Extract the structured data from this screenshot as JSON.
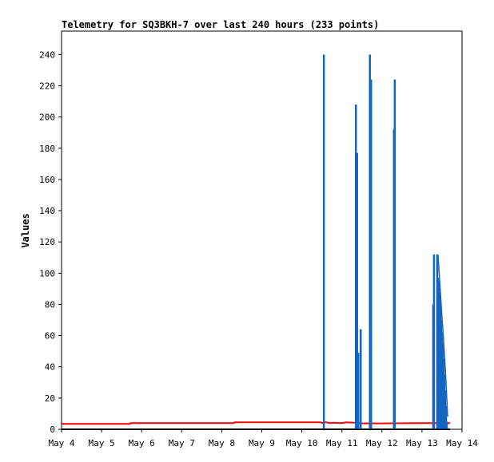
{
  "chart_data": {
    "type": "line",
    "title": "Telemetry for SQ3BKH-7 over last 240 hours (233 points)",
    "xlabel": "",
    "ylabel": "Values",
    "x_ticks": [
      "May 4",
      "May 5",
      "May 6",
      "May 7",
      "May 8",
      "May 9",
      "May 10",
      "May 11",
      "May 12",
      "May 13",
      "May 14"
    ],
    "y_ticks": [
      "0",
      "20",
      "40",
      "60",
      "80",
      "100",
      "120",
      "140",
      "160",
      "180",
      "200",
      "220",
      "240"
    ],
    "xlim": [
      0,
      10
    ],
    "ylim": [
      0,
      255
    ],
    "grid": false,
    "legend": "none",
    "series": [
      {
        "color": "#ff0000",
        "style": "line",
        "x": [
          0.0,
          1.7,
          1.72,
          4.3,
          4.32,
          6.48,
          6.5,
          6.6,
          6.7,
          6.8,
          7.0,
          7.1,
          7.3,
          7.5,
          8.0,
          9.0,
          9.7
        ],
        "y": [
          3.5,
          3.5,
          4.0,
          4.0,
          4.5,
          4.5,
          4.0,
          4.5,
          4.0,
          4.2,
          4.0,
          4.5,
          4.2,
          3.8,
          3.8,
          4.0,
          4.0
        ]
      },
      {
        "color": "#1565c0",
        "style": "impulse",
        "x": [
          6.55,
          7.35,
          7.38,
          7.41,
          7.47,
          7.7,
          7.73,
          8.3,
          8.32,
          9.28,
          9.3,
          9.38,
          9.4,
          9.42,
          9.44,
          9.46,
          9.48,
          9.5,
          9.52,
          9.54,
          9.56,
          9.58,
          9.6,
          9.62
        ],
        "y": [
          240,
          208,
          177,
          49,
          64,
          240,
          224,
          192,
          224,
          80,
          112,
          112,
          97,
          95,
          88,
          80,
          70,
          62,
          55,
          45,
          35,
          25,
          15,
          5
        ]
      },
      {
        "color": "#1565c0",
        "style": "line",
        "x": [
          9.4,
          9.44,
          9.48,
          9.52,
          9.56,
          9.6,
          9.64
        ],
        "y": [
          112,
          96,
          80,
          64,
          48,
          30,
          8
        ]
      }
    ]
  }
}
